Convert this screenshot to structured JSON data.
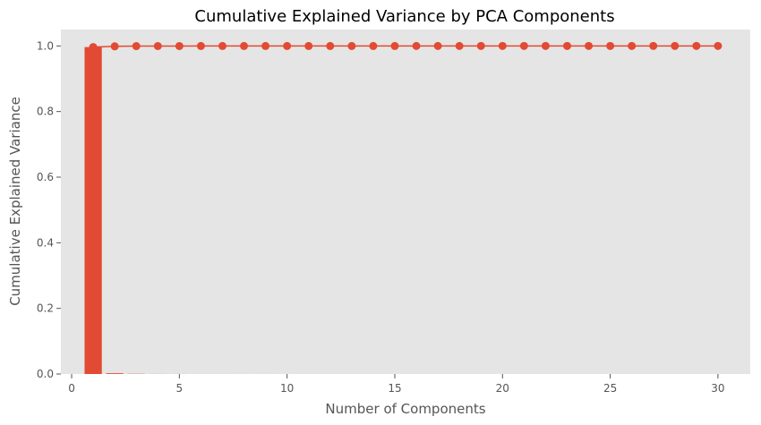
{
  "chart_data": {
    "type": "bar",
    "title": "Cumulative Explained Variance by PCA Components",
    "xlabel": "Number of Components",
    "ylabel": "Cumulative Explained Variance",
    "xlim": [
      -0.5,
      31.5
    ],
    "ylim": [
      0,
      1.05
    ],
    "xticks": [
      0,
      5,
      10,
      15,
      20,
      25,
      30
    ],
    "yticks": [
      0.0,
      0.2,
      0.4,
      0.6,
      0.8,
      1.0
    ],
    "grid": false,
    "legend": "none",
    "style": {
      "background": "#e5e5e5",
      "series_color": "#e24a33",
      "tick_color": "#555555"
    },
    "series": [
      {
        "type": "bar",
        "x": [
          1,
          2,
          3,
          4,
          5,
          6,
          7,
          8,
          9,
          10,
          11,
          12,
          13,
          14,
          15,
          16,
          17,
          18,
          19,
          20,
          21,
          22,
          23,
          24,
          25,
          26,
          27,
          28,
          29,
          30
        ],
        "values": [
          0.9965,
          0.0023,
          0.0006,
          0.0002,
          0.0001,
          5e-05,
          3e-05,
          2e-05,
          1e-05,
          1e-05,
          0.0,
          0.0,
          0.0,
          0.0,
          0.0,
          0.0,
          0.0,
          0.0,
          0.0,
          0.0,
          0.0,
          0.0,
          0.0,
          0.0,
          0.0,
          0.0,
          0.0,
          0.0,
          0.0,
          0.0
        ]
      },
      {
        "type": "line",
        "marker": "circle",
        "x": [
          1,
          2,
          3,
          4,
          5,
          6,
          7,
          8,
          9,
          10,
          11,
          12,
          13,
          14,
          15,
          16,
          17,
          18,
          19,
          20,
          21,
          22,
          23,
          24,
          25,
          26,
          27,
          28,
          29,
          30
        ],
        "values": [
          0.9965,
          0.9988,
          0.9994,
          0.9996,
          0.9997,
          0.99975,
          0.99978,
          0.9998,
          0.99981,
          0.99982,
          0.99983,
          0.99984,
          0.99985,
          0.99986,
          0.99987,
          0.99988,
          0.99989,
          0.9999,
          0.99991,
          0.99992,
          0.99993,
          0.99994,
          0.99995,
          0.99996,
          0.99997,
          0.99998,
          0.99998,
          0.99999,
          0.99999,
          1.0
        ]
      }
    ]
  }
}
